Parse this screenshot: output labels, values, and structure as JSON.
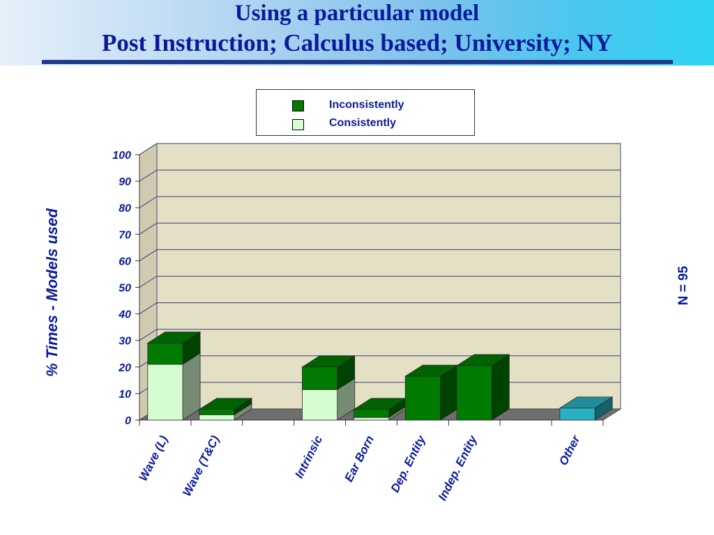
{
  "header": {
    "title_line1": "Using a particular model",
    "title_line2": "Post Instruction; Calculus based; University; NY"
  },
  "annotation": "N = 95",
  "colors": {
    "inconsistently": "#007a00",
    "consistently": "#d6fcd2",
    "other": "#2ab0c4",
    "wall": "#e4e0c6",
    "floor": "#6e6e6e",
    "text": "#0a1a9c"
  },
  "chart_data": {
    "type": "bar",
    "stacked": true,
    "three_d": true,
    "ylabel": "% Times - Models used",
    "xlabel": "",
    "ylim": [
      0,
      100
    ],
    "yticks": [
      0,
      10,
      20,
      30,
      40,
      50,
      60,
      70,
      80,
      90,
      100
    ],
    "grid": true,
    "legend_position": "top-center",
    "categories": [
      "Wave (L)",
      "Wave (T&C)",
      "",
      "Intrinsic",
      "Ear Born",
      "Dep. Entity",
      "Indep. Entity",
      "",
      "Other"
    ],
    "series": [
      {
        "name": "Consistently",
        "values": [
          21,
          2,
          0,
          11.5,
          1,
          0,
          0,
          0,
          0
        ]
      },
      {
        "name": "Inconsistently",
        "values": [
          8,
          2,
          0,
          8.5,
          3,
          16.5,
          20.5,
          0,
          4.5
        ]
      }
    ],
    "point_colors": {
      "8": "#2ab0c4"
    }
  }
}
